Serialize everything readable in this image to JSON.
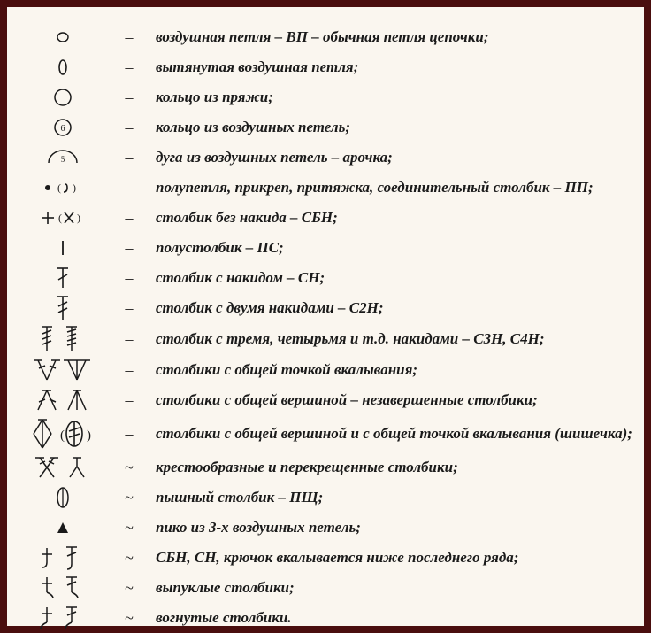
{
  "stroke": "#1a1a1a",
  "rows": [
    {
      "label": "воздушная петля – ВП – обычная петля цепочки;",
      "dash": "–",
      "svg": "<svg width='60' height='16'><ellipse cx='30' cy='8' rx='6' ry='5' fill='none' stroke='#1a1a1a' stroke-width='1.4'/></svg>"
    },
    {
      "label": "вытянутая воздушная петля;",
      "dash": "–",
      "svg": "<svg width='60' height='20'><ellipse cx='30' cy='10' rx='4' ry='8' fill='none' stroke='#1a1a1a' stroke-width='1.6'/></svg>"
    },
    {
      "label": "кольцо из пряжи;",
      "dash": "–",
      "svg": "<svg width='60' height='24'><circle cx='30' cy='12' r='9' fill='none' stroke='#1a1a1a' stroke-width='1.5'/></svg>"
    },
    {
      "label": "кольцо из воздушных петель;",
      "dash": "–",
      "svg": "<svg width='60' height='24'><circle cx='30' cy='12' r='9' fill='none' stroke='#1a1a1a' stroke-width='1.5'/><text x='30' y='16' text-anchor='middle' font-size='10' font-family=\"Times New Roman\" fill='#1a1a1a'>6</text></svg>"
    },
    {
      "label": "дуга из воздушных петель – арочка;",
      "dash": "–",
      "svg": "<svg width='60' height='20'><path d='M14 16 A 16 14 0 0 1 46 16' fill='none' stroke='#1a1a1a' stroke-width='1.5'/><text x='30' y='15' text-anchor='middle' font-size='9' font-family=\"Times New Roman\" fill='#1a1a1a'>5</text></svg>"
    },
    {
      "label": "полупетля, прикреп, притяжка, соединительный столбик – ПП;",
      "dash": "–",
      "svg": "<svg width='70' height='16'><circle cx='18' cy='8' r='3' fill='#1a1a1a'/><text x='29' y='12' font-size='12' fill='#1a1a1a'>(</text><path d='M38 4 Q40 4 40 8 Q40 13 36 13' fill='none' stroke='#1a1a1a' stroke-width='1.6'/><text x='46' y='12' font-size='12' fill='#1a1a1a'>)</text></svg>"
    },
    {
      "label": "столбик без накида – СБН;",
      "dash": "–",
      "svg": "<svg width='70' height='22'><g stroke='#1a1a1a' stroke-width='1.6'><line x1='18' y1='4' x2='18' y2='18'/><line x1='11' y1='11' x2='25' y2='11'/></g><text x='30' y='15' font-size='12' fill='#1a1a1a'>(</text><g stroke='#1a1a1a' stroke-width='1.6'><line x1='37' y1='5' x2='47' y2='17'/><line x1='47' y1='5' x2='37' y2='17'/></g><text x='51' y='15' font-size='12' fill='#1a1a1a'>)</text></svg>"
    },
    {
      "label": "полустолбик – ПС;",
      "dash": "–",
      "svg": "<svg width='60' height='22'><line x1='30' y1='3' x2='30' y2='19' stroke='#1a1a1a' stroke-width='1.8'/></svg>"
    },
    {
      "label": "столбик с накидом – СН;",
      "dash": "–",
      "svg": "<svg width='60' height='28'><g stroke='#1a1a1a' stroke-width='1.6'><line x1='30' y1='3' x2='30' y2='25'/><line x1='24' y1='3' x2='36' y2='3'/><line x1='25' y1='16' x2='35' y2='10'/></g></svg>"
    },
    {
      "label": "столбик с двумя накидами – С2Н;",
      "dash": "–",
      "svg": "<svg width='60' height='32'><g stroke='#1a1a1a' stroke-width='1.6'><line x1='30' y1='3' x2='30' y2='29'/><line x1='24' y1='3' x2='36' y2='3'/><line x1='25' y1='14' x2='35' y2='9'/><line x1='25' y1='21' x2='35' y2='16'/></g></svg>"
    },
    {
      "label": "столбик с тремя, четырьмя и т.д. накидами – С3Н, С4Н;",
      "dash": "–",
      "svg": "<svg width='80' height='34'><g stroke='#1a1a1a' stroke-width='1.5'><line x1='22' y1='3' x2='22' y2='31'/><line x1='16' y1='3' x2='28' y2='3'/><line x1='17' y1='11' x2='27' y2='7'/><line x1='17' y1='17' x2='27' y2='13'/><line x1='17' y1='23' x2='27' y2='19'/></g><g stroke='#1a1a1a' stroke-width='1.5'><line x1='50' y1='3' x2='50' y2='31'/><line x1='44' y1='3' x2='56' y2='3'/><line x1='45' y1='9' x2='55' y2='6'/><line x1='45' y1='14' x2='55' y2='11'/><line x1='45' y1='19' x2='55' y2='16'/><line x1='45' y1='24' x2='55' y2='21'/></g></svg>"
    },
    {
      "label": "столбики с общей точкой вкалывания;",
      "dash": "–",
      "svg": "<svg width='80' height='30'><g stroke='#1a1a1a' stroke-width='1.5'><line x1='12' y1='4' x2='22' y2='26'/><line x1='32' y1='4' x2='22' y2='26'/><line x1='7' y1='4' x2='17' y2='4'/><line x1='27' y1='4' x2='37' y2='4'/><line x1='13' y1='13' x2='20' y2='10'/><line x1='25' y1='10' x2='32' y2='13'/></g><g stroke='#1a1a1a' stroke-width='1.5'><line x1='46' y1='4' x2='56' y2='26'/><line x1='56' y1='4' x2='56' y2='26'/><line x1='66' y1='4' x2='56' y2='26'/><line x1='41' y1='4' x2='51' y2='4'/><line x1='51' y1='4' x2='61' y2='4'/><line x1='61' y1='4' x2='71' y2='4'/></g></svg>"
    },
    {
      "label": "столбики с общей вершиной – незавершенные столбики;",
      "dash": "–",
      "svg": "<svg width='80' height='30'><g stroke='#1a1a1a' stroke-width='1.5'><line x1='22' y1='4' x2='12' y2='26'/><line x1='22' y1='4' x2='32' y2='26'/><line x1='17' y1='4' x2='27' y2='4'/><line x1='13' y1='17' x2='20' y2='14'/><line x1='25' y1='14' x2='32' y2='17'/></g><g stroke='#1a1a1a' stroke-width='1.5'><line x1='56' y1='4' x2='46' y2='26'/><line x1='56' y1='4' x2='56' y2='26'/><line x1='56' y1='4' x2='66' y2='26'/><line x1='51' y1='4' x2='61' y2='4'/></g></svg>"
    },
    {
      "label": "столбики с общей вершиной и с общей точкой вкалывания (шишечка);",
      "dash": "–",
      "svg": "<svg width='90' height='40'><g stroke='#1a1a1a' stroke-width='1.5' fill='none'><line x1='22' y1='4' x2='12' y2='20'/><line x1='22' y1='4' x2='32' y2='20'/><line x1='12' y1='20' x2='22' y2='36'/><line x1='32' y1='20' x2='22' y2='36'/><line x1='22' y1='4' x2='22' y2='36'/><line x1='17' y1='4' x2='27' y2='4'/></g><text x='42' y='26' font-size='15' fill='#1a1a1a'>(</text><g stroke='#1a1a1a' stroke-width='1.6' fill='none'><ellipse cx='58' cy='20' rx='9' ry='14'/><line x1='58' y1='6' x2='58' y2='34'/><line x1='52' y1='17' x2='64' y2='13'/><line x1='52' y1='24' x2='64' y2='20'/></g><text x='72' y='26' font-size='15' fill='#1a1a1a'>)</text></svg>"
    },
    {
      "label": "крестообразные и перекрещенные столбики;",
      "dash": "~",
      "svg": "<svg width='80' height='30'><g stroke='#1a1a1a' stroke-width='1.5'><line x1='14' y1='4' x2='30' y2='26'/><line x1='30' y1='4' x2='14' y2='26'/><line x1='9' y1='4' x2='19' y2='4'/><line x1='25' y1='4' x2='35' y2='4'/><line x1='14' y1='11' x2='20' y2='8'/><line x1='24' y1='8' x2='30' y2='11'/></g><g stroke='#1a1a1a' stroke-width='1.5'><line x1='56' y1='4' x2='56' y2='14'/><line x1='56' y1='14' x2='48' y2='26'/><line x1='56' y1='14' x2='64' y2='26'/><line x1='51' y1='4' x2='61' y2='4'/></g></svg>"
    },
    {
      "label": "пышный столбик – ПЩ;",
      "dash": "~",
      "svg": "<svg width='60' height='28'><ellipse cx='30' cy='14' rx='6' ry='11' fill='none' stroke='#1a1a1a' stroke-width='1.5'/><line x1='30' y1='3' x2='30' y2='25' stroke='#1a1a1a' stroke-width='1.3'/></svg>"
    },
    {
      "label": "пико из 3-х воздушных петель;",
      "dash": "~",
      "svg": "<svg width='60' height='20'><path d='M24 16 L30 4 L36 16 Z' fill='#1a1a1a'/></svg>"
    },
    {
      "label": "СБН, СН, крючок вкалывается ниже последнего ряда;",
      "dash": "~",
      "svg": "<svg width='80' height='30'><g stroke='#1a1a1a' stroke-width='1.5' fill='none'><line x1='22' y1='4' x2='22' y2='20'/><line x1='16' y1='11' x2='28' y2='11'/><path d='M22 20 Q22 26 17 26'/></g><g stroke='#1a1a1a' stroke-width='1.5' fill='none'><line x1='50' y1='3' x2='50' y2='22'/><line x1='44' y1='3' x2='56' y2='3'/><line x1='45' y1='13' x2='55' y2='9'/><path d='M50 22 Q50 28 45 28'/></g></svg>"
    },
    {
      "label": "выпуклые столбики;",
      "dash": "~",
      "svg": "<svg width='80' height='30'><g stroke='#1a1a1a' stroke-width='1.5' fill='none'><line x1='22' y1='3' x2='22' y2='20'/><line x1='16' y1='10' x2='28' y2='10'/><path d='M22 20 Q29 23 29 27'/></g><g stroke='#1a1a1a' stroke-width='1.5' fill='none'><line x1='50' y1='3' x2='50' y2='20'/><line x1='44' y1='3' x2='56' y2='3'/><line x1='45' y1='12' x2='55' y2='8'/><path d='M50 20 Q57 23 57 27'/></g></svg>"
    },
    {
      "label": "вогнутые столбики.",
      "dash": "~",
      "svg": "<svg width='80' height='30'><g stroke='#1a1a1a' stroke-width='1.5' fill='none'><line x1='22' y1='3' x2='22' y2='20'/><line x1='16' y1='10' x2='28' y2='10'/><path d='M22 20 Q15 23 15 27'/></g><g stroke='#1a1a1a' stroke-width='1.5' fill='none'><line x1='50' y1='3' x2='50' y2='20'/><line x1='44' y1='3' x2='56' y2='3'/><line x1='45' y1='12' x2='55' y2='8'/><path d='M50 20 Q43 23 43 27'/></g></svg>"
    }
  ]
}
